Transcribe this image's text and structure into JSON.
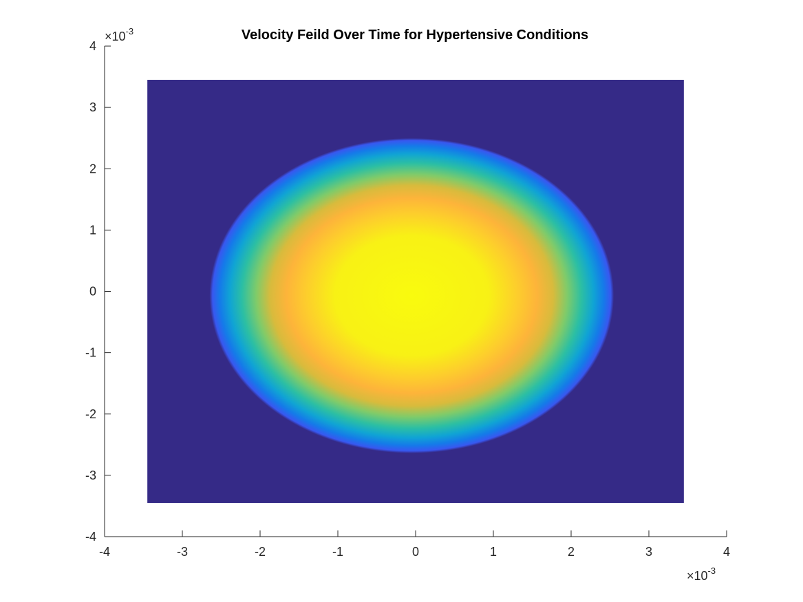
{
  "chart_data": {
    "type": "heatmap",
    "title": "Velocity Feild Over Time for Hypertensive Conditions",
    "xlabel": "",
    "ylabel": "",
    "xlim": [
      -4,
      4
    ],
    "ylim": [
      -4,
      4
    ],
    "x_ticks": [
      -4,
      -3,
      -2,
      -1,
      0,
      1,
      2,
      3,
      4
    ],
    "y_ticks": [
      -4,
      -3,
      -2,
      -1,
      0,
      1,
      2,
      3,
      4
    ],
    "x_tick_labels": [
      "-4",
      "-3",
      "-2",
      "-1",
      "0",
      "1",
      "2",
      "3",
      "4"
    ],
    "y_tick_labels": [
      "-4",
      "-3",
      "-2",
      "-1",
      "0",
      "1",
      "2",
      "3",
      "4"
    ],
    "x_exponent_label": "×10",
    "x_exponent_power": "-3",
    "y_exponent_label": "×10",
    "y_exponent_power": "-3",
    "grid": false,
    "colormap": "parula",
    "background_color": "#352a87",
    "data_extent": {
      "x": [
        -3.45,
        3.45
      ],
      "y": [
        -3.45,
        3.45
      ]
    },
    "field": {
      "shape": "ellipse",
      "center": [
        -0.05,
        -0.07
      ],
      "semi_axis_x": 2.6,
      "semi_axis_y": 2.57,
      "max_value": 1.0,
      "min_value": 0.0
    }
  }
}
